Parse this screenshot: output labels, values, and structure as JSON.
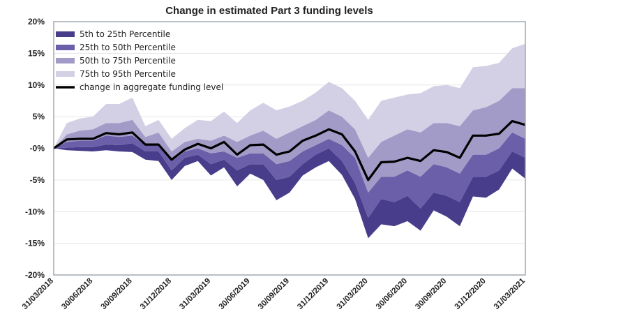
{
  "chart_data": {
    "type": "area",
    "title": "Change in estimated Part 3 funding levels",
    "xlabel": "",
    "ylabel": "",
    "ylim": [
      -20,
      20
    ],
    "yticks": [
      20,
      15,
      10,
      5,
      0,
      -5,
      -10,
      -15,
      -20
    ],
    "ytick_labels": [
      "20%",
      "15%",
      "10%",
      "5%",
      "-0%",
      "-5%",
      "-10%",
      "-15%",
      "-20%"
    ],
    "x": [
      "31/03/2018",
      "30/04/2018",
      "31/05/2018",
      "30/06/2018",
      "31/07/2018",
      "31/08/2018",
      "30/09/2018",
      "31/10/2018",
      "30/11/2018",
      "31/12/2018",
      "31/01/2019",
      "28/02/2019",
      "31/03/2019",
      "30/04/2019",
      "31/05/2019",
      "30/06/2019",
      "31/07/2019",
      "31/08/2019",
      "30/09/2019",
      "31/10/2019",
      "30/11/2019",
      "31/12/2019",
      "31/01/2020",
      "29/02/2020",
      "31/03/2020",
      "30/04/2020",
      "31/05/2020",
      "30/06/2020",
      "31/07/2020",
      "31/08/2020",
      "30/09/2020",
      "31/10/2020",
      "30/11/2020",
      "31/12/2020",
      "31/01/2021",
      "28/02/2021",
      "31/03/2021"
    ],
    "xtick_labels": [
      "31/03/2018",
      "30/06/2018",
      "30/09/2018",
      "31/12/2018",
      "31/03/2019",
      "30/06/2019",
      "30/09/2019",
      "31/12/2019",
      "31/03/2020",
      "30/06/2020",
      "30/09/2020",
      "31/12/2020",
      "31/03/2021"
    ],
    "legend_position": "top-left",
    "grid": true,
    "colors": {
      "band_5_25": "#483d8b",
      "band_25_50": "#6a5fa8",
      "band_50_75": "#a29bc8",
      "band_75_95": "#d3d0e5",
      "aggregate_line": "#000000",
      "axis": "#a0a8b0"
    },
    "bands": [
      {
        "name": "5th to 25th Percentile",
        "lower_key": "p5",
        "upper_key": "p25",
        "color_key": "band_5_25"
      },
      {
        "name": "25th to 50th Percentile",
        "lower_key": "p25",
        "upper_key": "p50",
        "color_key": "band_25_50"
      },
      {
        "name": "50th to 75th Percentile",
        "lower_key": "p50",
        "upper_key": "p75",
        "color_key": "band_50_75"
      },
      {
        "name": "75th to 95th Percentile",
        "lower_key": "p75",
        "upper_key": "p95",
        "color_key": "band_75_95"
      }
    ],
    "line": {
      "name": "change in aggregate funding level"
    },
    "series": {
      "p5": [
        0,
        -0.3,
        -0.4,
        -0.5,
        -0.3,
        -0.5,
        -0.6,
        -1.8,
        -2.0,
        -5.0,
        -2.8,
        -2.0,
        -4.3,
        -3.0,
        -6.0,
        -4.0,
        -5.0,
        -8.2,
        -7.0,
        -4.3,
        -3.0,
        -2.0,
        -4.2,
        -8.0,
        -14.2,
        -12.0,
        -12.3,
        -11.5,
        -13.0,
        -9.8,
        -10.8,
        -12.3,
        -7.6,
        -7.8,
        -6.5,
        -3.2,
        -4.8
      ],
      "p25": [
        0,
        0.1,
        0.2,
        0.2,
        0.6,
        0.5,
        0.8,
        -0.5,
        -0.5,
        -3.5,
        -1.5,
        -1.0,
        -2.5,
        -1.8,
        -3.5,
        -2.5,
        -2.5,
        -5.0,
        -4.5,
        -2.5,
        -1.0,
        0.0,
        -2.0,
        -5.5,
        -11.0,
        -8.0,
        -8.5,
        -7.5,
        -9.5,
        -7.0,
        -7.5,
        -8.5,
        -4.5,
        -4.5,
        -3.5,
        -0.5,
        -1.5
      ],
      "p50": [
        0,
        1.0,
        1.2,
        1.2,
        2.0,
        1.8,
        2.0,
        0.5,
        0.5,
        -2.0,
        -0.5,
        0.0,
        -0.8,
        -0.5,
        -1.5,
        -0.8,
        -0.8,
        -2.5,
        -2.0,
        -0.5,
        0.5,
        1.5,
        0.5,
        -1.5,
        -7.0,
        -4.5,
        -4.5,
        -3.5,
        -4.5,
        -2.5,
        -3.0,
        -4.0,
        -1.0,
        -1.0,
        0.0,
        2.5,
        1.5
      ],
      "p75": [
        0,
        2.2,
        2.8,
        3.0,
        4.0,
        4.0,
        4.5,
        1.8,
        2.5,
        -0.5,
        1.0,
        1.5,
        1.2,
        2.0,
        1.0,
        2.0,
        2.8,
        1.5,
        2.5,
        3.5,
        4.5,
        6.0,
        5.0,
        3.0,
        -1.5,
        1.0,
        2.0,
        3.0,
        2.5,
        4.0,
        4.0,
        3.5,
        6.0,
        6.5,
        7.5,
        9.5,
        9.5
      ],
      "p95": [
        0,
        4.0,
        4.7,
        5.0,
        7.0,
        7.0,
        8.0,
        3.5,
        4.5,
        1.5,
        3.2,
        4.5,
        4.3,
        5.8,
        4.0,
        6.0,
        7.2,
        6.0,
        6.6,
        7.5,
        8.8,
        10.5,
        9.5,
        7.5,
        4.5,
        7.5,
        8.0,
        8.5,
        8.7,
        9.8,
        10.0,
        9.5,
        12.8,
        13.0,
        13.5,
        15.8,
        16.5
      ],
      "aggregate": [
        0,
        1.4,
        1.5,
        1.5,
        2.4,
        2.2,
        2.5,
        0.6,
        0.6,
        -1.8,
        -0.2,
        0.7,
        0.0,
        1.0,
        -1.0,
        0.5,
        0.6,
        -1.0,
        -0.5,
        1.2,
        2.0,
        3.0,
        2.2,
        -0.5,
        -5.0,
        -2.2,
        -2.1,
        -1.5,
        -2.0,
        -0.3,
        -0.6,
        -1.5,
        2.0,
        2.0,
        2.3,
        4.3,
        3.7
      ]
    }
  }
}
